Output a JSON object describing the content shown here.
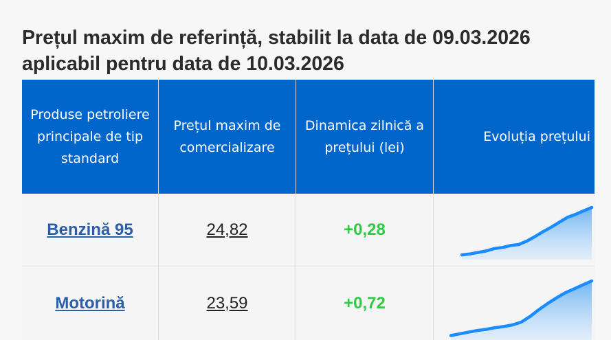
{
  "page": {
    "title_line1": "Prețul maxim de referință, stabilit la data de 09.03.2026",
    "title_line2": "aplicabil pentru data de 10.03.2026"
  },
  "table": {
    "headers": {
      "product": "Produse petroliere principale de tip standard",
      "price": "Prețul maxim de comercializare",
      "dynamic": "Dinamica zilnică a prețului (lei)",
      "evolution": "Evoluția prețului"
    },
    "rows": [
      {
        "product": "Benzină 95",
        "price": "24,82",
        "dynamic": "+0,28",
        "trend": [
          0.04,
          0.06,
          0.09,
          0.12,
          0.17,
          0.19,
          0.23,
          0.25,
          0.32,
          0.41,
          0.51,
          0.6,
          0.7,
          0.8,
          0.86,
          0.93,
          1.0
        ]
      },
      {
        "product": "Motorină",
        "price": "23,59",
        "dynamic": "+0,72",
        "trend": [
          0.03,
          0.06,
          0.09,
          0.12,
          0.14,
          0.17,
          0.19,
          0.22,
          0.27,
          0.37,
          0.49,
          0.6,
          0.7,
          0.79,
          0.86,
          0.93,
          1.0
        ]
      }
    ]
  },
  "colors": {
    "header_bg": "#0066cc",
    "positive": "#2ecc40",
    "link": "#2a5ea8",
    "spark_line": "#1a8cff"
  }
}
